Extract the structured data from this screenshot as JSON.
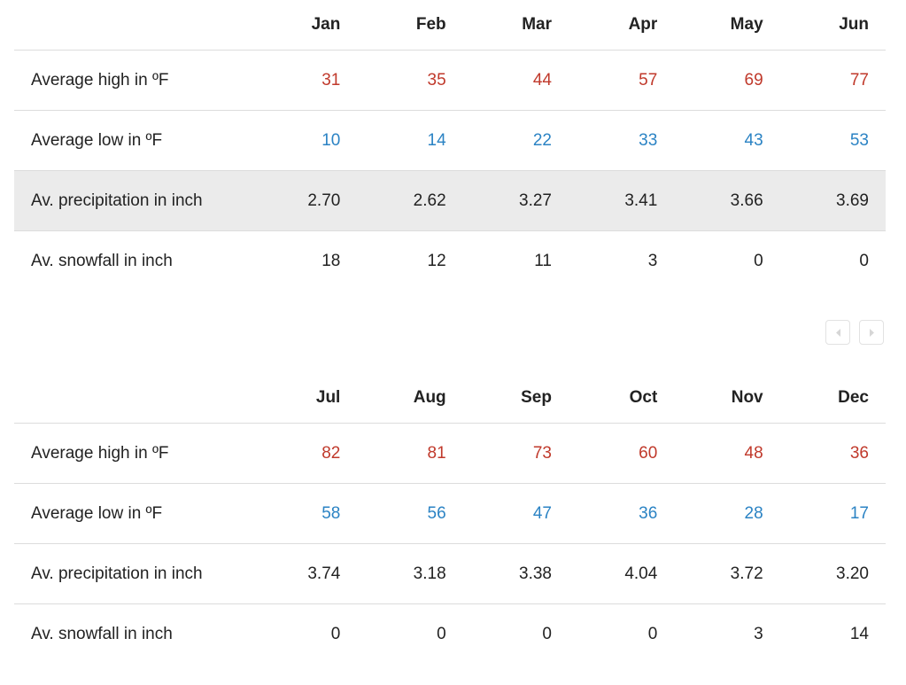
{
  "colors": {
    "high": "#c0392b",
    "low": "#2b83c4",
    "text": "#222222",
    "highlight_row": "#ebebeb",
    "border": "#dcdcdc"
  },
  "tables": [
    {
      "months": [
        "Jan",
        "Feb",
        "Mar",
        "Apr",
        "May",
        "Jun"
      ],
      "rows": {
        "high": {
          "label": "Average high in ºF",
          "values": [
            "31",
            "35",
            "44",
            "57",
            "69",
            "77"
          ]
        },
        "low": {
          "label": "Average low in ºF",
          "values": [
            "10",
            "14",
            "22",
            "33",
            "43",
            "53"
          ]
        },
        "precip": {
          "label": "Av. precipitation in inch",
          "values": [
            "2.70",
            "2.62",
            "3.27",
            "3.41",
            "3.66",
            "3.69"
          ]
        },
        "snow": {
          "label": "Av. snowfall in inch",
          "values": [
            "18",
            "12",
            "11",
            "3",
            "0",
            "0"
          ]
        }
      }
    },
    {
      "months": [
        "Jul",
        "Aug",
        "Sep",
        "Oct",
        "Nov",
        "Dec"
      ],
      "rows": {
        "high": {
          "label": "Average high in ºF",
          "values": [
            "82",
            "81",
            "73",
            "60",
            "48",
            "36"
          ]
        },
        "low": {
          "label": "Average low in ºF",
          "values": [
            "58",
            "56",
            "47",
            "36",
            "28",
            "17"
          ]
        },
        "precip": {
          "label": "Av. precipitation in inch",
          "values": [
            "3.74",
            "3.18",
            "3.38",
            "4.04",
            "3.72",
            "3.20"
          ]
        },
        "snow": {
          "label": "Av. snowfall in inch",
          "values": [
            "0",
            "0",
            "0",
            "0",
            "3",
            "14"
          ]
        }
      }
    }
  ],
  "pager": {
    "prev_icon": "caret-left-icon",
    "next_icon": "caret-right-icon"
  }
}
